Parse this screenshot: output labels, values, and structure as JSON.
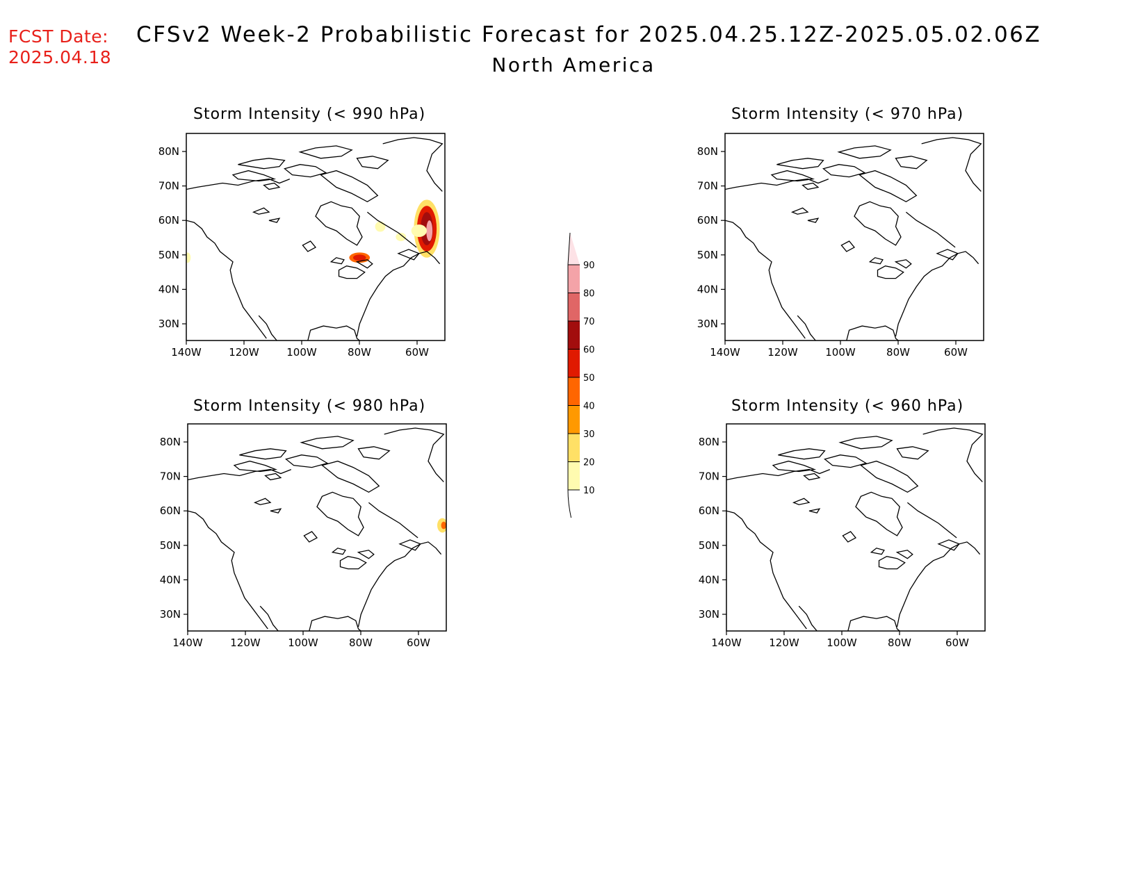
{
  "fcst": {
    "line1": "FCST Date:",
    "line2": "2025.04.18"
  },
  "title": "CFSv2 Week-2 Probabilistic Forecast for 2025.04.25.12Z-2025.05.02.06Z",
  "subtitle": "North America",
  "lat_labels": [
    "80N",
    "70N",
    "60N",
    "50N",
    "40N",
    "30N"
  ],
  "lon_labels": [
    "140W",
    "120W",
    "100W",
    "80W",
    "60W"
  ],
  "panels": [
    {
      "title": "Storm Intensity (< 990 hPa)",
      "has_data": true
    },
    {
      "title": "Storm Intensity (< 970 hPa)",
      "has_data": false
    },
    {
      "title": "Storm Intensity (< 980 hPa)",
      "has_data": true
    },
    {
      "title": "Storm Intensity (< 960 hPa)",
      "has_data": false
    }
  ],
  "colorbar": {
    "labels": [
      "90",
      "80",
      "70",
      "60",
      "50",
      "40",
      "30",
      "20",
      "10"
    ],
    "colors": [
      "#fde2e6",
      "#f4a3a8",
      "#e06666",
      "#a20d0d",
      "#e01a00",
      "#ff6600",
      "#ff9900",
      "#ffe066",
      "#fffbb0"
    ]
  }
}
